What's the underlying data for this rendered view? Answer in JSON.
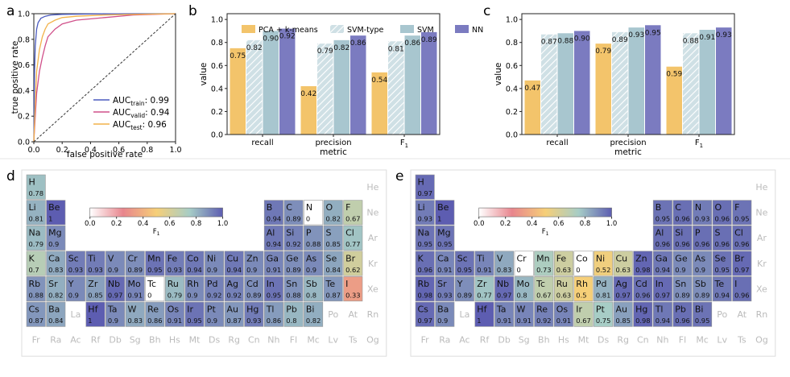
{
  "colors": {
    "pca": "#f3c46b",
    "svmtype": "#cfe0e5",
    "svmtype_hatch": "#ffffff",
    "svm": "#a8c6cf",
    "nn": "#7b7bc0",
    "train": "#4b5bbf",
    "valid": "#d0508a",
    "test": "#f2b24a",
    "dash": "#333333",
    "axis": "#222222",
    "cell_border": "#999999",
    "inactive_text": "#bbbbbb",
    "panel_border": "#dddddd"
  },
  "colormap": [
    "#ffffff",
    "#e8858d",
    "#f6cf78",
    "#a7cdc6",
    "#5d5db1"
  ],
  "panel_labels": {
    "a": "a",
    "b": "b",
    "c": "c",
    "d": "d",
    "e": "e"
  },
  "roc": {
    "xlabel": "false positive rate",
    "ylabel": "true positive rate",
    "ticks": [
      "0.0",
      "0.2",
      "0.4",
      "0.6",
      "0.8",
      "1.0"
    ],
    "legend": [
      {
        "name": "train",
        "base": "AUC",
        "sub": "train",
        "value": ": 0.99"
      },
      {
        "name": "valid",
        "base": "AUC",
        "sub": "valid",
        "value": ": 0.94"
      },
      {
        "name": "test",
        "base": "AUC",
        "sub": "test",
        "value": ": 0.96"
      }
    ]
  },
  "metric_xlabel": "metric",
  "metric_ylabel": "value",
  "metric_yticks": [
    "0.0",
    "0.2",
    "0.4",
    "0.6",
    "0.8",
    "1.0"
  ],
  "legend_labels": [
    "PCA + k-means",
    "SVM-type",
    "SVM",
    "NN"
  ],
  "periodic": {
    "colorbar_label": "F",
    "colorbar_label_sub": "1",
    "colorbar_ticks": [
      "0.0",
      "0.2",
      "0.4",
      "0.6",
      "0.8",
      "1.0"
    ],
    "d": {
      "H": "0.78",
      "Li": "0.81",
      "Be": "1",
      "B": "0.94",
      "C": "0.89",
      "N": "0",
      "O": "0.82",
      "F": "0.67",
      "Na": "0.79",
      "Mg": "0.9",
      "Al": "0.94",
      "Si": "0.92",
      "P": "0.88",
      "S": "0.85",
      "Cl": "0.77",
      "K": "0.7",
      "Ca": "0.83",
      "Sc": "0.93",
      "Ti": "0.93",
      "V": "0.9",
      "Cr": "0.89",
      "Mn": "0.95",
      "Fe": "0.93",
      "Co": "0.94",
      "Ni": "0.9",
      "Cu": "0.94",
      "Zn": "0.9",
      "Ga": "0.91",
      "Ge": "0.89",
      "As": "0.9",
      "Se": "0.84",
      "Br": "0.62",
      "Rb": "0.88",
      "Sr": "0.82",
      "Y": "0.9",
      "Zr": "0.85",
      "Nb": "0.97",
      "Mo": "0.91",
      "Tc": "0",
      "Ru": "0.79",
      "Rh": "0.9",
      "Pd": "0.92",
      "Ag": "0.92",
      "Cd": "0.89",
      "In": "0.95",
      "Sn": "0.88",
      "Sb": "0.8",
      "Te": "0.87",
      "I": "0.33",
      "Cs": "0.87",
      "Ba": "0.84",
      "Hf": "1",
      "Ta": "0.9",
      "W": "0.83",
      "Re": "0.86",
      "Os": "0.91",
      "Ir": "0.95",
      "Pt": "0.9",
      "Au": "0.87",
      "Hg": "0.93",
      "Tl": "0.86",
      "Pb": "0.8",
      "Bi": "0.82"
    },
    "e": {
      "H": "0.97",
      "Li": "0.93",
      "Be": "1",
      "B": "0.95",
      "C": "0.96",
      "N": "0.93",
      "O": "0.96",
      "F": "0.95",
      "Na": "0.95",
      "Mg": "0.95",
      "Al": "0.96",
      "Si": "0.96",
      "P": "0.96",
      "S": "0.96",
      "Cl": "0.96",
      "K": "0.96",
      "Ca": "0.91",
      "Sc": "0.95",
      "Ti": "0.91",
      "V": "0.83",
      "Cr": "0",
      "Mn": "0.73",
      "Fe": "0.63",
      "Co": "0",
      "Ni": "0.52",
      "Cu": "0.63",
      "Zn": "0.98",
      "Ga": "0.94",
      "Ge": "0.9",
      "As": "0.9",
      "Se": "0.95",
      "Br": "0.97",
      "Rb": "0.98",
      "Sr": "0.93",
      "Y": "0.89",
      "Zr": "0.77",
      "Nb": "0.97",
      "Mo": "0.8",
      "Tc": "0.67",
      "Ru": "0.63",
      "Rh": "0.5",
      "Pd": "0.81",
      "Ag": "0.97",
      "Cd": "0.96",
      "In": "0.97",
      "Sn": "0.89",
      "Sb": "0.89",
      "Te": "0.94",
      "I": "0.96",
      "Cs": "0.97",
      "Ba": "0.9",
      "Hf": "1",
      "Ta": "0.91",
      "W": "0.91",
      "Re": "0.92",
      "Os": "0.91",
      "Ir": "0.67",
      "Pt": "0.75",
      "Au": "0.85",
      "Hg": "0.98",
      "Tl": "0.94",
      "Pb": "0.96",
      "Bi": "0.95"
    }
  },
  "chart_data": [
    {
      "panel": "a",
      "type": "line",
      "title": "",
      "xlabel": "false positive rate",
      "ylabel": "true positive rate",
      "xlim": [
        0,
        1
      ],
      "ylim": [
        0,
        1
      ],
      "series": [
        {
          "name": "train",
          "label": "AUC_train: 0.99",
          "x": [
            0,
            0.005,
            0.01,
            0.02,
            0.03,
            0.05,
            0.08,
            0.12,
            0.2,
            0.4,
            0.7,
            1.0
          ],
          "y": [
            0,
            0.55,
            0.75,
            0.88,
            0.93,
            0.965,
            0.98,
            0.99,
            0.995,
            0.998,
            1.0,
            1.0
          ]
        },
        {
          "name": "valid",
          "label": "AUC_valid: 0.94",
          "x": [
            0,
            0.01,
            0.02,
            0.04,
            0.06,
            0.08,
            0.1,
            0.15,
            0.2,
            0.3,
            0.5,
            0.7,
            1.0
          ],
          "y": [
            0,
            0.2,
            0.38,
            0.55,
            0.66,
            0.75,
            0.82,
            0.88,
            0.92,
            0.95,
            0.97,
            0.99,
            1.0
          ]
        },
        {
          "name": "test",
          "label": "AUC_test: 0.96",
          "x": [
            0,
            0.01,
            0.02,
            0.04,
            0.06,
            0.08,
            0.1,
            0.15,
            0.2,
            0.3,
            0.5,
            0.7,
            1.0
          ],
          "y": [
            0,
            0.3,
            0.55,
            0.72,
            0.82,
            0.88,
            0.92,
            0.95,
            0.97,
            0.98,
            0.99,
            0.995,
            1.0
          ]
        },
        {
          "name": "chance",
          "x": [
            0,
            1
          ],
          "y": [
            0,
            1
          ]
        }
      ]
    },
    {
      "panel": "b",
      "type": "bar",
      "xlabel": "metric",
      "ylabel": "value",
      "ylim": [
        0,
        1.05
      ],
      "categories": [
        "recall",
        "precision",
        "F1"
      ],
      "series": [
        {
          "name": "PCA + k-means",
          "values": [
            0.75,
            0.42,
            0.54
          ]
        },
        {
          "name": "SVM-type",
          "values": [
            0.82,
            0.79,
            0.81
          ]
        },
        {
          "name": "SVM",
          "values": [
            0.9,
            0.82,
            0.86
          ]
        },
        {
          "name": "NN",
          "values": [
            0.92,
            0.86,
            0.89
          ]
        }
      ]
    },
    {
      "panel": "c",
      "type": "bar",
      "xlabel": "metric",
      "ylabel": "value",
      "ylim": [
        0,
        1.05
      ],
      "categories": [
        "recall",
        "precision",
        "F1"
      ],
      "series": [
        {
          "name": "PCA + k-means",
          "values": [
            0.47,
            0.79,
            0.59
          ]
        },
        {
          "name": "SVM-type",
          "values": [
            0.87,
            0.89,
            0.88
          ]
        },
        {
          "name": "SVM",
          "values": [
            0.88,
            0.93,
            0.91
          ]
        },
        {
          "name": "NN",
          "values": [
            0.9,
            0.95,
            0.93
          ]
        }
      ]
    }
  ]
}
